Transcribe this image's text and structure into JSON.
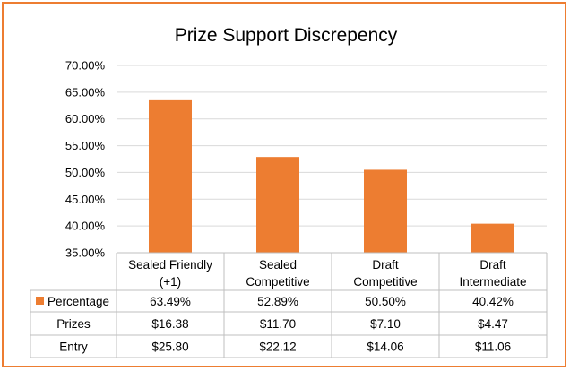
{
  "chart_data": {
    "type": "bar",
    "title": "Prize Support Discrepency",
    "categories": [
      "Sealed Friendly (+1)",
      "Sealed Competitive",
      "Draft Competitive",
      "Draft Intermediate"
    ],
    "category_lines": [
      [
        "Sealed Friendly",
        "(+1)"
      ],
      [
        "Sealed",
        "Competitive"
      ],
      [
        "Draft",
        "Competitive"
      ],
      [
        "Draft",
        "Intermediate"
      ]
    ],
    "series": [
      {
        "name": "Percentage",
        "values": [
          63.49,
          52.89,
          50.5,
          40.42
        ],
        "color": "#ed7d31"
      }
    ],
    "ylim": [
      35,
      70
    ],
    "ytick_step": 5,
    "ytick_labels": [
      "35.00%",
      "40.00%",
      "45.00%",
      "50.00%",
      "55.00%",
      "60.00%",
      "65.00%",
      "70.00%"
    ],
    "grid": true,
    "data_table": {
      "rows": [
        {
          "label": "Percentage",
          "legend_key": true,
          "values": [
            "63.49%",
            "52.89%",
            "50.50%",
            "40.42%"
          ]
        },
        {
          "label": "Prizes",
          "legend_key": false,
          "values": [
            "$16.38",
            "$11.70",
            "$7.10",
            "$4.47"
          ]
        },
        {
          "label": "Entry",
          "legend_key": false,
          "values": [
            "$25.80",
            "$22.12",
            "$14.06",
            "$11.06"
          ]
        }
      ]
    }
  }
}
